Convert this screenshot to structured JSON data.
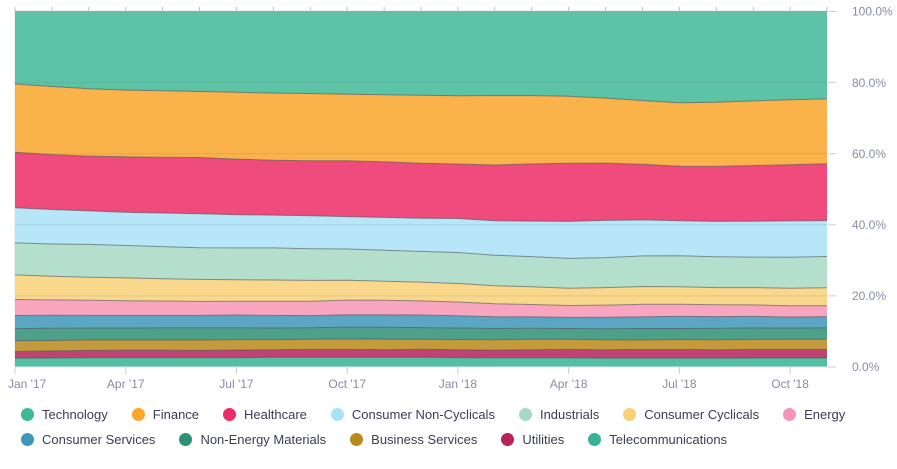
{
  "chart_data": {
    "type": "area",
    "stacked": "percent",
    "title": "",
    "xlabel": "",
    "ylabel": "",
    "ylim": [
      0,
      100
    ],
    "grid": true,
    "legend_position": "bottom",
    "x": [
      "Jan '17",
      "Feb '17",
      "Mar '17",
      "Apr '17",
      "May '17",
      "Jun '17",
      "Jul '17",
      "Aug '17",
      "Sep '17",
      "Oct '17",
      "Nov '17",
      "Dec '17",
      "Jan '18",
      "Feb '18",
      "Mar '18",
      "Apr '18",
      "May '18",
      "Jun '18",
      "Jul '18",
      "Aug '18",
      "Sep '18",
      "Oct '18",
      "Nov '18"
    ],
    "x_tick_labels": [
      "Jan '17",
      "Apr '17",
      "Jul '17",
      "Oct '17",
      "Jan '18",
      "Apr '18",
      "Jul '18",
      "Oct '18"
    ],
    "y_tick_labels": [
      "0.0%",
      "20.0%",
      "40.0%",
      "60.0%",
      "80.0%",
      "100.0%"
    ],
    "series": [
      {
        "name": "Technology",
        "color": "#3FB896",
        "values": [
          20.4,
          20.9,
          21.4,
          21.8,
          22.0,
          22.2,
          22.4,
          22.6,
          22.8,
          23.0,
          23.1,
          23.2,
          23.3,
          23.4,
          23.4,
          23.6,
          24.2,
          25.0,
          25.6,
          25.4,
          24.9,
          24.5,
          24.3
        ]
      },
      {
        "name": "Finance",
        "color": "#F9A62B",
        "values": [
          19.2,
          19.0,
          18.7,
          18.5,
          18.4,
          18.3,
          18.5,
          18.6,
          18.7,
          18.5,
          18.6,
          18.8,
          18.9,
          19.3,
          19.0,
          18.6,
          18.2,
          17.9,
          17.8,
          17.9,
          18.0,
          18.1,
          18.0
        ]
      },
      {
        "name": "Healthcare",
        "color": "#EC2D66",
        "values": [
          15.6,
          15.3,
          15.2,
          15.4,
          15.5,
          15.6,
          15.4,
          15.2,
          15.3,
          15.5,
          15.4,
          15.2,
          15.1,
          15.5,
          15.9,
          16.2,
          16.0,
          15.6,
          15.3,
          15.4,
          15.5,
          15.6,
          15.8
        ]
      },
      {
        "name": "Consumer Non-Cyclicals",
        "color": "#A9E2F6",
        "values": [
          9.9,
          9.6,
          9.3,
          9.2,
          9.3,
          9.4,
          9.2,
          9.1,
          9.2,
          9.0,
          9.1,
          9.2,
          9.4,
          9.6,
          9.9,
          10.3,
          10.4,
          10.1,
          9.8,
          9.9,
          10.0,
          10.1,
          10.0
        ]
      },
      {
        "name": "Industrials",
        "color": "#A6D9C3",
        "values": [
          9.0,
          9.0,
          9.1,
          9.0,
          8.9,
          8.8,
          8.8,
          8.9,
          8.8,
          8.7,
          8.6,
          8.5,
          8.6,
          8.5,
          8.4,
          8.3,
          8.4,
          8.6,
          8.7,
          8.6,
          8.5,
          8.6,
          8.7
        ]
      },
      {
        "name": "Consumer Cyclicals",
        "color": "#F8D177",
        "values": [
          6.9,
          6.6,
          6.4,
          6.3,
          6.2,
          6.1,
          6.0,
          5.9,
          5.8,
          5.5,
          5.3,
          5.2,
          5.1,
          5.0,
          4.9,
          4.8,
          4.9,
          5.0,
          4.9,
          4.8,
          4.8,
          4.9,
          5.0
        ]
      },
      {
        "name": "Energy",
        "color": "#F795B5",
        "values": [
          4.5,
          4.3,
          4.2,
          4.1,
          4.0,
          3.9,
          3.8,
          3.9,
          4.0,
          4.1,
          4.0,
          3.9,
          3.8,
          3.6,
          3.4,
          3.3,
          3.4,
          3.5,
          3.4,
          3.3,
          3.2,
          3.1,
          3.0
        ]
      },
      {
        "name": "Consumer Services",
        "color": "#3E97B9",
        "values": [
          3.7,
          3.6,
          3.5,
          3.5,
          3.4,
          3.4,
          3.5,
          3.5,
          3.4,
          3.4,
          3.5,
          3.5,
          3.4,
          3.3,
          3.2,
          3.1,
          3.2,
          3.3,
          3.4,
          3.3,
          3.2,
          3.1,
          3.1
        ]
      },
      {
        "name": "Non-Energy Materials",
        "color": "#2E8F74",
        "values": [
          3.4,
          3.4,
          3.3,
          3.3,
          3.4,
          3.4,
          3.3,
          3.2,
          3.2,
          3.3,
          3.3,
          3.2,
          3.2,
          3.1,
          3.1,
          3.0,
          3.1,
          3.2,
          3.1,
          3.2,
          3.2,
          3.1,
          3.2
        ]
      },
      {
        "name": "Business Services",
        "color": "#B9891B",
        "values": [
          3.0,
          2.9,
          2.9,
          2.8,
          2.8,
          2.9,
          2.9,
          2.8,
          2.8,
          2.9,
          2.9,
          2.8,
          2.8,
          2.9,
          2.9,
          2.8,
          2.8,
          2.7,
          2.8,
          2.8,
          2.8,
          2.8,
          2.8
        ]
      },
      {
        "name": "Utilities",
        "color": "#B52357",
        "values": [
          1.9,
          2.0,
          2.0,
          2.1,
          2.1,
          2.0,
          2.1,
          2.1,
          2.2,
          2.2,
          2.1,
          2.2,
          2.2,
          2.1,
          2.2,
          2.3,
          2.3,
          2.4,
          2.4,
          2.3,
          2.4,
          2.4,
          2.4
        ]
      },
      {
        "name": "Telecommunications",
        "color": "#35B392",
        "values": [
          2.5,
          2.5,
          2.6,
          2.6,
          2.6,
          2.6,
          2.6,
          2.7,
          2.7,
          2.7,
          2.7,
          2.7,
          2.6,
          2.6,
          2.6,
          2.6,
          2.5,
          2.5,
          2.5,
          2.5,
          2.5,
          2.5,
          2.5
        ]
      }
    ],
    "style": {
      "band_fill_opacity": 0.85,
      "band_outline_color": "#4C4F58",
      "axis_text_color": "#878DA2",
      "gridline_color": "#5A5F72",
      "top_axis_line_color": "#9BA1B0",
      "tick_color": "#C9CCD6",
      "legend_text_color": "#3A3D55",
      "background_color": "#FFFFFF"
    }
  }
}
